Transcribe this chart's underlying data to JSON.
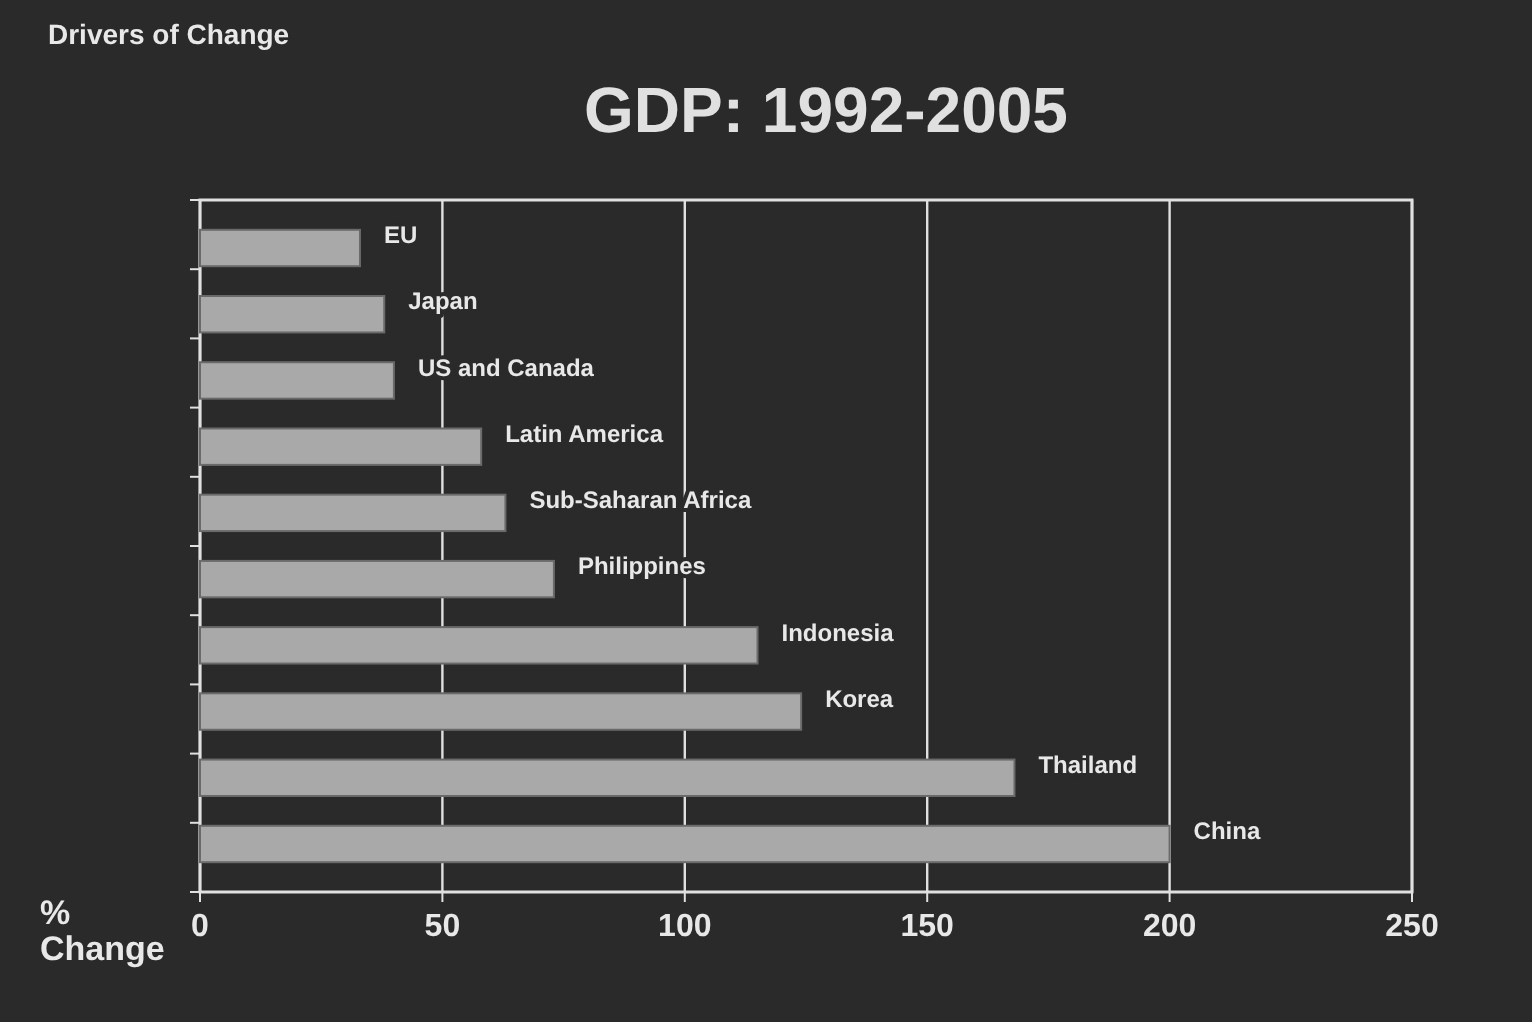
{
  "chart_data": {
    "type": "bar",
    "orientation": "horizontal",
    "title": "GDP: 1992-2005",
    "xlabel": "% Change",
    "annotations": [
      "Drivers of Change"
    ],
    "categories": [
      "EU",
      "Japan",
      "US and Canada",
      "Latin America",
      "Sub-Saharan Africa",
      "Philippines",
      "Indonesia",
      "Korea",
      "Thailand",
      "China"
    ],
    "values": [
      33,
      38,
      40,
      58,
      63,
      73,
      115,
      124,
      168,
      200
    ],
    "color": "#a9a9a9",
    "xlim": [
      0,
      250
    ],
    "xticks": [
      0,
      50,
      100,
      150,
      200,
      250
    ],
    "grid": "x"
  }
}
